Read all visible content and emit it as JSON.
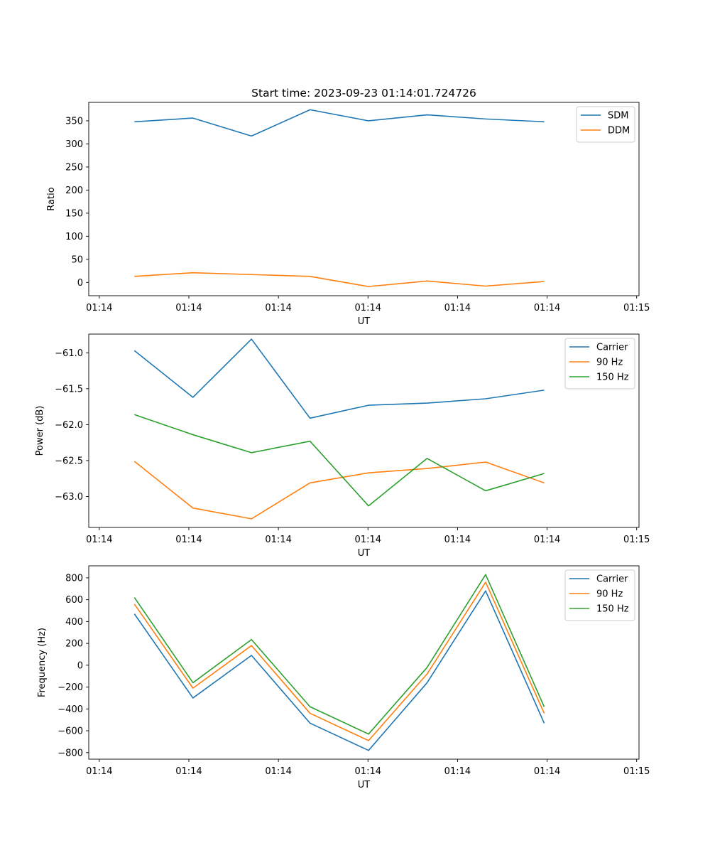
{
  "chart_data": [
    {
      "type": "line",
      "title": "Start time: 2023-09-23 01:14:01.724726",
      "xlabel": "UT",
      "ylabel": "Ratio",
      "x": [
        0,
        1,
        2,
        3,
        4,
        5,
        6,
        7
      ],
      "xlim": [
        -0.78,
        8.62
      ],
      "xticks": [
        -0.6,
        0.93,
        2.46,
        3.99,
        5.52,
        7.05,
        8.58
      ],
      "xtick_labels": [
        "01:14",
        "01:14",
        "01:14",
        "01:14",
        "01:14",
        "01:14",
        "01:15"
      ],
      "ylim": [
        -28.8,
        390
      ],
      "yticks": [
        0,
        50,
        100,
        150,
        200,
        250,
        300,
        350
      ],
      "ytick_labels": [
        "0",
        "50",
        "100",
        "150",
        "200",
        "250",
        "300",
        "350"
      ],
      "legend_position": "top-right",
      "series": [
        {
          "name": "SDM",
          "color": "#1f77b4",
          "values": [
            348,
            356,
            317,
            374,
            350,
            363,
            354,
            348
          ]
        },
        {
          "name": "DDM",
          "color": "#ff7f0e",
          "values": [
            13,
            21,
            17,
            13,
            -9,
            3,
            -8,
            2
          ]
        }
      ]
    },
    {
      "type": "line",
      "xlabel": "UT",
      "ylabel": "Power (dB)",
      "x": [
        0,
        1,
        2,
        3,
        4,
        5,
        6,
        7
      ],
      "xlim": [
        -0.78,
        8.62
      ],
      "xticks": [
        -0.6,
        0.93,
        2.46,
        3.99,
        5.52,
        7.05,
        8.58
      ],
      "xtick_labels": [
        "01:14",
        "01:14",
        "01:14",
        "01:14",
        "01:14",
        "01:14",
        "01:15"
      ],
      "ylim": [
        -63.43,
        -60.74
      ],
      "yticks": [
        -63.0,
        -62.5,
        -62.0,
        -61.5,
        -61.0
      ],
      "ytick_labels": [
        "−63.0",
        "−62.5",
        "−62.0",
        "−61.5",
        "−61.0"
      ],
      "legend_position": "top-right",
      "series": [
        {
          "name": "Carrier",
          "color": "#1f77b4",
          "values": [
            -60.97,
            -61.62,
            -60.81,
            -61.91,
            -61.73,
            -61.7,
            -61.64,
            -61.52
          ]
        },
        {
          "name": "90 Hz",
          "color": "#ff7f0e",
          "values": [
            -62.51,
            -63.16,
            -63.31,
            -62.81,
            -62.67,
            -62.61,
            -62.52,
            -62.81
          ]
        },
        {
          "name": "150 Hz",
          "color": "#2ca02c",
          "values": [
            -61.86,
            -62.14,
            -62.39,
            -62.23,
            -63.13,
            -62.47,
            -62.92,
            -62.68
          ]
        }
      ]
    },
    {
      "type": "line",
      "xlabel": "UT",
      "ylabel": "Frequency (Hz)",
      "x": [
        0,
        1,
        2,
        3,
        4,
        5,
        6,
        7
      ],
      "xlim": [
        -0.78,
        8.62
      ],
      "xticks": [
        -0.6,
        0.93,
        2.46,
        3.99,
        5.52,
        7.05,
        8.58
      ],
      "xtick_labels": [
        "01:14",
        "01:14",
        "01:14",
        "01:14",
        "01:14",
        "01:14",
        "01:15"
      ],
      "ylim": [
        -860,
        910
      ],
      "yticks": [
        -800,
        -600,
        -400,
        -200,
        0,
        200,
        400,
        600,
        800
      ],
      "ytick_labels": [
        "−800",
        "−600",
        "−400",
        "−200",
        "0",
        "200",
        "400",
        "600",
        "800"
      ],
      "legend_position": "top-right",
      "series": [
        {
          "name": "Carrier",
          "color": "#1f77b4",
          "values": [
            470,
            -300,
            90,
            -530,
            -780,
            -160,
            680,
            -530
          ]
        },
        {
          "name": "90 Hz",
          "color": "#ff7f0e",
          "values": [
            560,
            -210,
            180,
            -440,
            -690,
            -80,
            760,
            -440
          ]
        },
        {
          "name": "150 Hz",
          "color": "#2ca02c",
          "values": [
            620,
            -160,
            235,
            -380,
            -630,
            -20,
            830,
            -380
          ]
        }
      ]
    }
  ]
}
